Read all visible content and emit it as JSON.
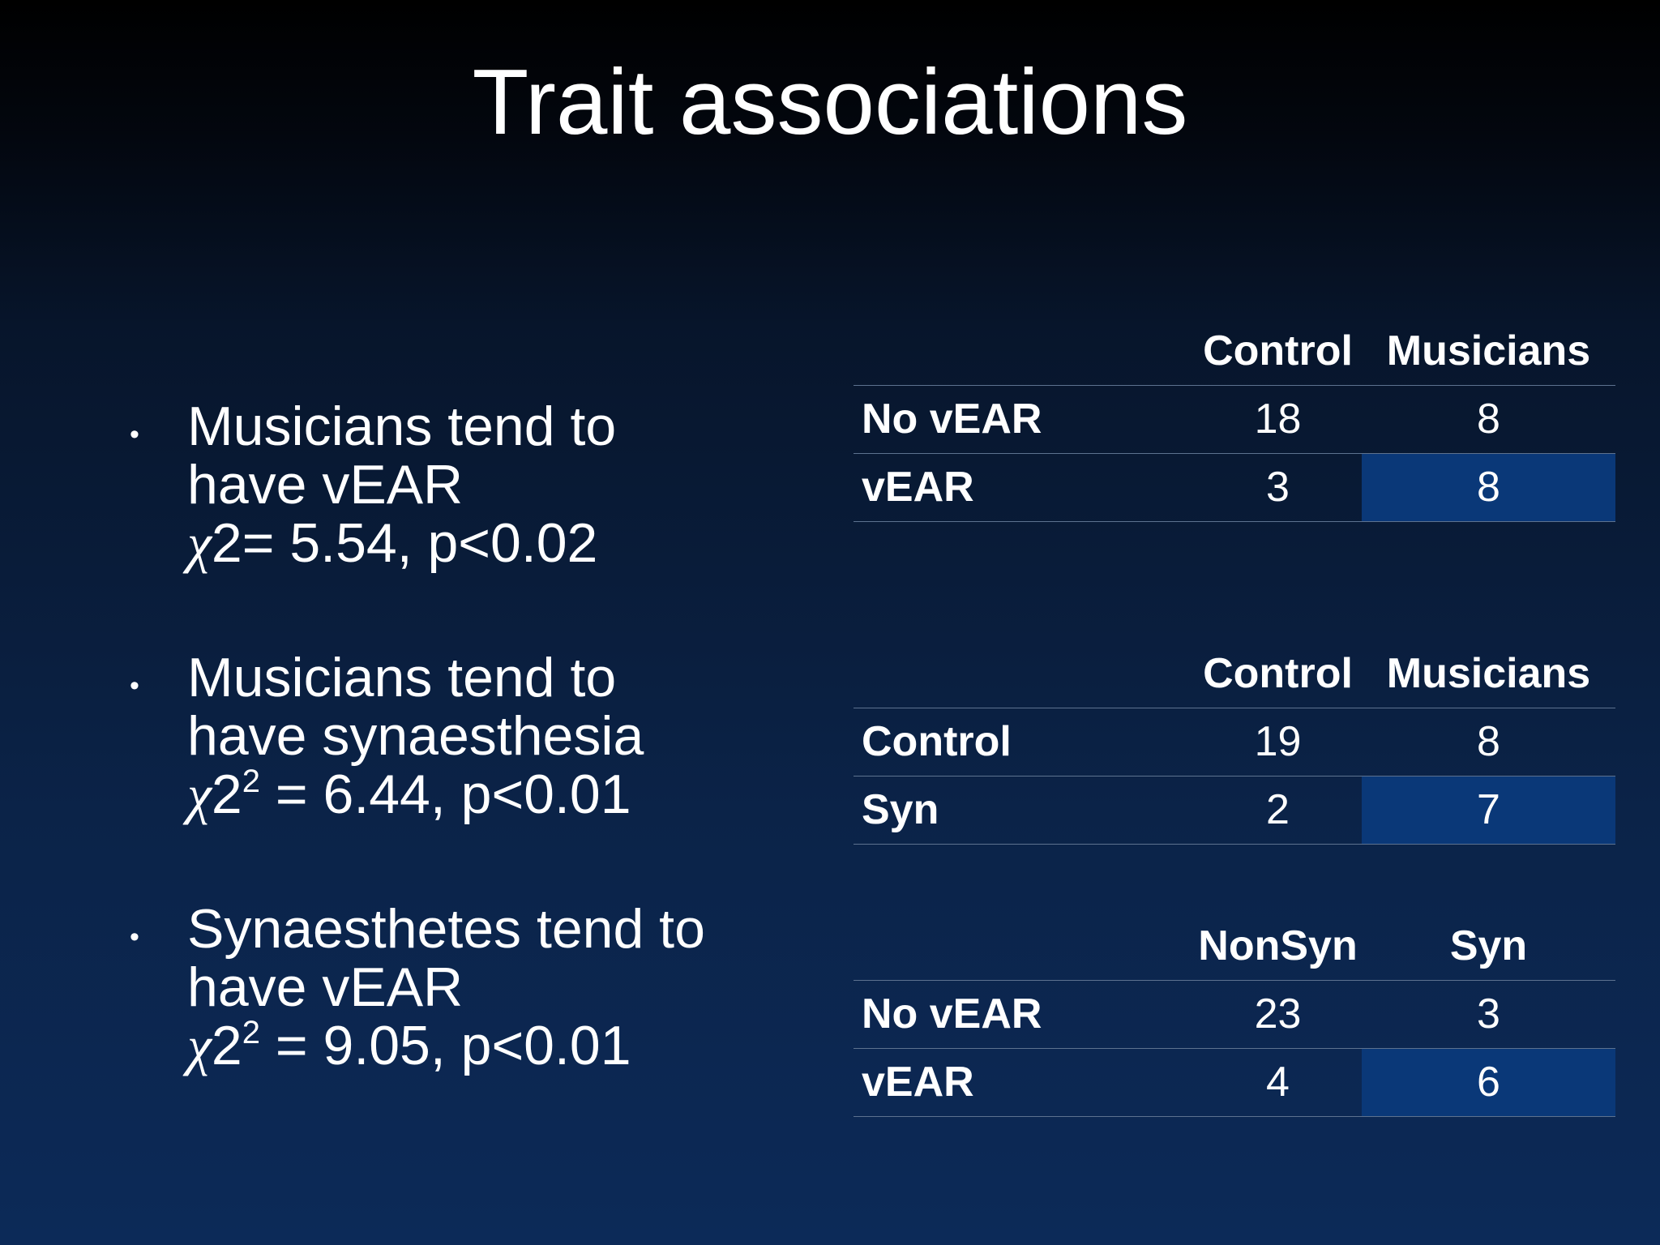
{
  "title": "Trait associations",
  "bullets": [
    {
      "lines": [
        "Musicians tend to",
        "have vEAR"
      ],
      "stat": {
        "symbol": "χ",
        "base": "2",
        "rest": "= 5.54, p<0.02"
      }
    },
    {
      "lines": [
        "Musicians tend to",
        "have synaesthesia"
      ],
      "stat": {
        "symbol": "χ",
        "base": "2",
        "sup": "2",
        "rest": " = 6.44, p<0.01"
      }
    },
    {
      "lines": [
        "Synaesthetes tend to",
        "have vEAR"
      ],
      "stat": {
        "symbol": "χ",
        "base": "2",
        "sup": "2",
        "rest": " = 9.05, p<0.01"
      }
    }
  ],
  "tables": [
    {
      "header": [
        "Control",
        "Musicians"
      ],
      "rows": [
        {
          "label": "No vEAR",
          "cells": [
            18,
            8
          ]
        },
        {
          "label": "vEAR",
          "cells": [
            3,
            8
          ]
        }
      ]
    },
    {
      "header": [
        "Control",
        "Musicians"
      ],
      "rows": [
        {
          "label": "Control",
          "cells": [
            19,
            8
          ]
        },
        {
          "label": "Syn",
          "cells": [
            2,
            7
          ]
        }
      ]
    },
    {
      "header": [
        "NonSyn",
        "Syn"
      ],
      "rows": [
        {
          "label": "No vEAR",
          "cells": [
            23,
            3
          ]
        },
        {
          "label": "vEAR",
          "cells": [
            4,
            6
          ]
        }
      ]
    }
  ]
}
